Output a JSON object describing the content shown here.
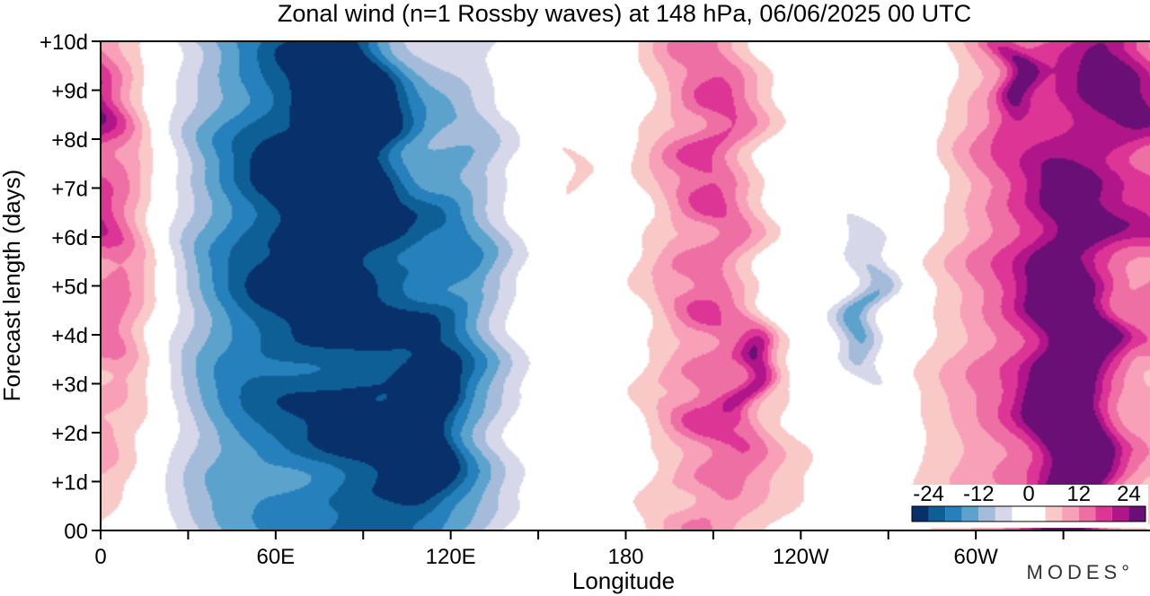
{
  "chart_data": {
    "type": "heatmap",
    "title": "Zonal wind (n=1 Rossby waves) at 148 hPa,  06/06/2025  00 UTC",
    "xlabel": "Longitude",
    "ylabel": "Forecast length (days)",
    "x_ticks": [
      "0",
      "60E",
      "120E",
      "180",
      "120W",
      "60W"
    ],
    "x_tick_values": [
      0,
      60,
      120,
      180,
      240,
      300
    ],
    "x_range": [
      0,
      360
    ],
    "y_ticks": [
      "00",
      "+1d",
      "+2d",
      "+3d",
      "+4d",
      "+5d",
      "+6d",
      "+7d",
      "+8d",
      "+9d",
      "+10d"
    ],
    "y_range": [
      0,
      10
    ],
    "colorbar": {
      "labels": [
        "-24",
        "-12",
        "0",
        "12",
        "24"
      ],
      "label_values": [
        -24,
        -12,
        0,
        12,
        24
      ],
      "levels": [
        -28,
        -24,
        -20,
        -16,
        -12,
        -8,
        -4,
        0,
        4,
        8,
        12,
        16,
        20,
        24,
        28
      ],
      "colors": [
        "#08306b",
        "#0f5f97",
        "#2580bb",
        "#5ba3cc",
        "#a4bcda",
        "#d6d8ea",
        "#ffffff",
        "#ffffff",
        "#f9c9c7",
        "#f7a0b8",
        "#ee6fa4",
        "#dc3596",
        "#b0158a",
        "#6a0f75"
      ]
    },
    "features": [
      {
        "lon": 7,
        "day": 5.0,
        "value": 9,
        "sx": 10,
        "sy": 2.6
      },
      {
        "lon": 5,
        "day": 8.5,
        "value": 4,
        "sx": 8,
        "sy": 2.5
      },
      {
        "lon": 40,
        "day": 6.0,
        "value": -7,
        "sx": 14,
        "sy": 7.0
      },
      {
        "lon": 55,
        "day": 2.5,
        "value": -9,
        "sx": 18,
        "sy": 4.5
      },
      {
        "lon": 65,
        "day": 8.0,
        "value": -15,
        "sx": 16,
        "sy": 3.5
      },
      {
        "lon": 87,
        "day": 8.6,
        "value": -24,
        "sx": 12,
        "sy": 1.8
      },
      {
        "lon": 84,
        "day": 3.5,
        "value": -12,
        "sx": 18,
        "sy": 4.0
      },
      {
        "lon": 108,
        "day": 3.5,
        "value": -15,
        "sx": 18,
        "sy": 3.5
      },
      {
        "lon": 112,
        "day": 2.4,
        "value": -21,
        "sx": 6,
        "sy": 0.7
      },
      {
        "lon": 107,
        "day": 1.5,
        "value": -20,
        "sx": 5,
        "sy": 0.5
      },
      {
        "lon": 125,
        "day": 5.5,
        "value": -8,
        "sx": 10,
        "sy": 4.0
      },
      {
        "lon": 100,
        "day": 0.5,
        "value": -8,
        "sx": 20,
        "sy": 1.5
      },
      {
        "lon": 160,
        "day": 7.5,
        "value": 5,
        "sx": 5,
        "sy": 1.0
      },
      {
        "lon": 165,
        "day": 9.5,
        "value": -3,
        "sx": 6,
        "sy": 1.0
      },
      {
        "lon": 196,
        "day": 5.0,
        "value": 7,
        "sx": 9,
        "sy": 6.0
      },
      {
        "lon": 212,
        "day": 4.5,
        "value": 12,
        "sx": 9,
        "sy": 4.5
      },
      {
        "lon": 223,
        "day": 3.3,
        "value": 16,
        "sx": 4,
        "sy": 0.7
      },
      {
        "lon": 212,
        "day": 9.0,
        "value": 8,
        "sx": 12,
        "sy": 1.8
      },
      {
        "lon": 225,
        "day": 1.5,
        "value": 7,
        "sx": 14,
        "sy": 1.5
      },
      {
        "lon": 262,
        "day": 4.8,
        "value": -6,
        "sx": 8,
        "sy": 1.8
      },
      {
        "lon": 262,
        "day": 4.3,
        "value": -9,
        "sx": 4,
        "sy": 0.8
      },
      {
        "lon": 279,
        "day": 9.0,
        "value": -4,
        "sx": 8,
        "sy": 2.0
      },
      {
        "lon": 313,
        "day": 7.0,
        "value": 9,
        "sx": 16,
        "sy": 4.0
      },
      {
        "lon": 312,
        "day": 9.2,
        "value": 14,
        "sx": 4,
        "sy": 0.6
      },
      {
        "lon": 331,
        "day": 3.6,
        "value": 17,
        "sx": 9,
        "sy": 3.0
      },
      {
        "lon": 334,
        "day": 1.0,
        "value": 14,
        "sx": 8,
        "sy": 2.0
      },
      {
        "lon": 350,
        "day": 9.5,
        "value": 14,
        "sx": 10,
        "sy": 1.5
      },
      {
        "lon": 345,
        "day": 6.0,
        "value": 9,
        "sx": 14,
        "sy": 5.0
      },
      {
        "lon": 325,
        "day": 6.0,
        "value": 7,
        "sx": 25,
        "sy": 6.0
      },
      {
        "lon": 355,
        "day": 4.0,
        "value": -4,
        "sx": 5,
        "sy": 1.0
      },
      {
        "lon": 303,
        "day": 1.5,
        "value": 5,
        "sx": 20,
        "sy": 2.0
      }
    ]
  },
  "brand": "MODES°"
}
